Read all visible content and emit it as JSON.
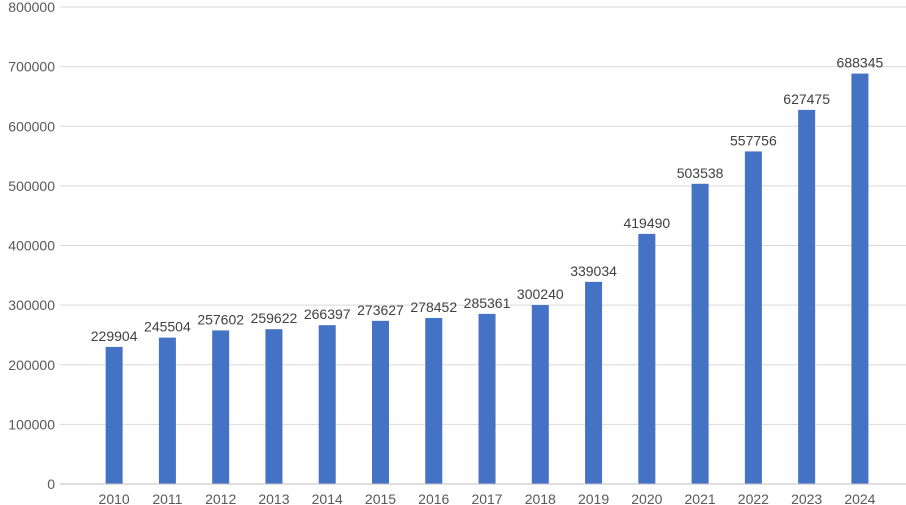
{
  "chart_data": {
    "type": "bar",
    "title": "",
    "xlabel": "",
    "ylabel": "",
    "categories": [
      "2010",
      "2011",
      "2012",
      "2013",
      "2014",
      "2015",
      "2016",
      "2017",
      "2018",
      "2019",
      "2020",
      "2021",
      "2022",
      "2023",
      "2024"
    ],
    "values": [
      229904,
      245504,
      257602,
      259622,
      266397,
      273627,
      278452,
      285361,
      300240,
      339034,
      419490,
      503538,
      557756,
      627475,
      688345
    ],
    "data_labels": [
      "229904",
      "245504",
      "257602",
      "259622",
      "266397",
      "273627",
      "278452",
      "285361",
      "300240",
      "339034",
      "419490",
      "503538",
      "557756",
      "627475",
      "688345"
    ],
    "ylim": [
      0,
      800000
    ],
    "yticks": [
      "0",
      "100000",
      "200000",
      "300000",
      "400000",
      "500000",
      "600000",
      "700000",
      "800000"
    ],
    "grid": true,
    "legend": "none",
    "colors": {
      "bar": "#4472C4",
      "grid": "#D9D9D9",
      "axis": "#BFBFBF",
      "leader": "#7F7F7F"
    }
  }
}
